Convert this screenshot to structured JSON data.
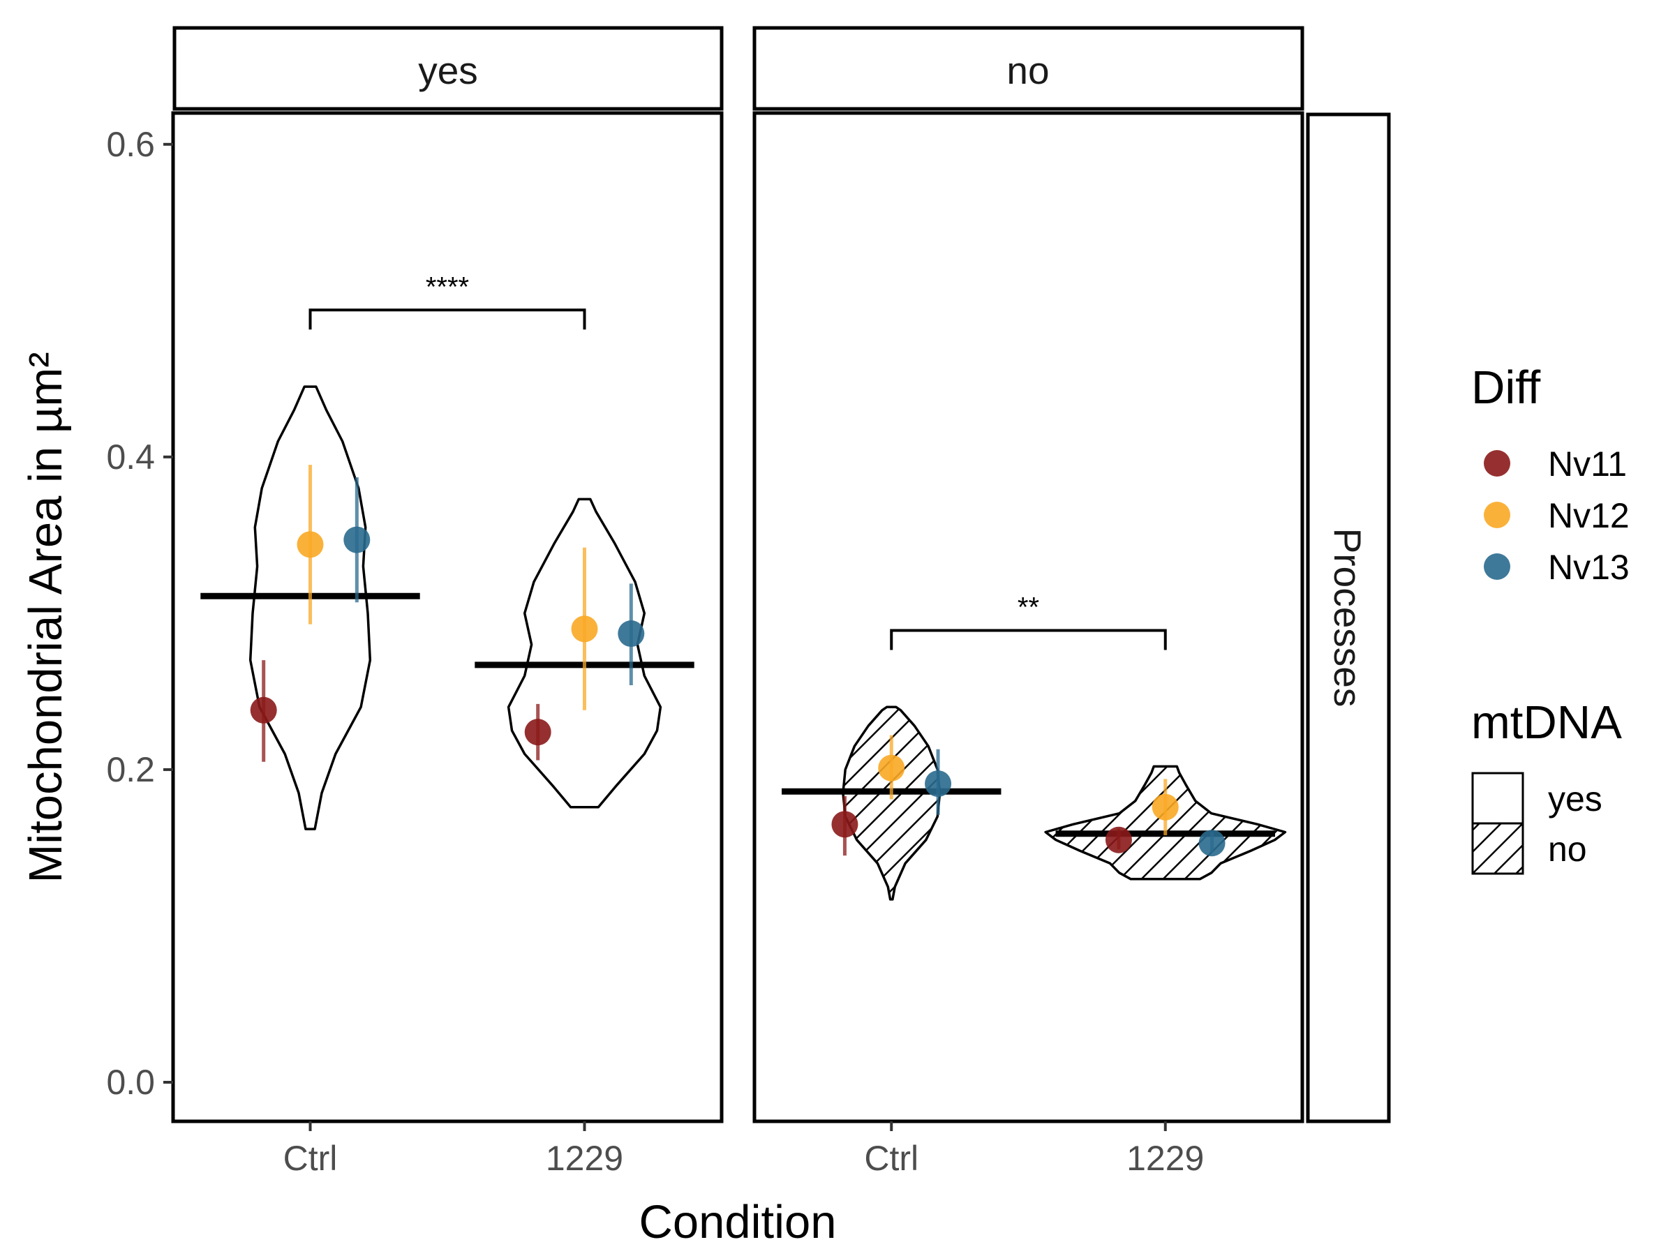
{
  "chart_data": {
    "type": "violin",
    "xlabel": "Condition",
    "ylabel": "Mitochondrial Area in µm²",
    "ylim": [
      -0.025,
      0.62
    ],
    "yticks": [
      "0.0",
      "0.2",
      "0.4",
      "0.6"
    ],
    "ytick_values": [
      0.0,
      0.2,
      0.4,
      0.6
    ],
    "categories": [
      "Ctrl",
      "1229"
    ],
    "facet_cols": [
      "yes",
      "no"
    ],
    "facet_row": "Processes",
    "legend": {
      "position": "right",
      "diff": {
        "title": "Diff",
        "items": [
          {
            "label": "Nv11",
            "color": "#8b1a1a"
          },
          {
            "label": "Nv12",
            "color": "#f9a825"
          },
          {
            "label": "Nv13",
            "color": "#2a6a8e"
          }
        ]
      },
      "mtdna": {
        "title": "mtDNA",
        "items": [
          {
            "label": "yes",
            "fill": "none"
          },
          {
            "label": "no",
            "fill": "hatch"
          }
        ]
      }
    },
    "panels": [
      {
        "facet": "yes",
        "hatched": false,
        "groups": [
          {
            "category": "Ctrl",
            "mean": 0.311,
            "violin": [
              [
                0.162,
                0.004
              ],
              [
                0.185,
                0.01
              ],
              [
                0.21,
                0.022
              ],
              [
                0.24,
                0.044
              ],
              [
                0.27,
                0.052
              ],
              [
                0.3,
                0.05
              ],
              [
                0.33,
                0.046
              ],
              [
                0.355,
                0.048
              ],
              [
                0.38,
                0.042
              ],
              [
                0.41,
                0.028
              ],
              [
                0.43,
                0.014
              ],
              [
                0.445,
                0.005
              ]
            ],
            "points": [
              {
                "diff": "Nv11",
                "y": 0.238,
                "low": 0.205,
                "high": 0.27
              },
              {
                "diff": "Nv12",
                "y": 0.344,
                "low": 0.293,
                "high": 0.395
              },
              {
                "diff": "Nv13",
                "y": 0.347,
                "low": 0.307,
                "high": 0.387
              }
            ]
          },
          {
            "category": "1229",
            "mean": 0.267,
            "violin": [
              [
                0.176,
                0.012
              ],
              [
                0.19,
                0.028
              ],
              [
                0.21,
                0.052
              ],
              [
                0.225,
                0.063
              ],
              [
                0.24,
                0.066
              ],
              [
                0.26,
                0.052
              ],
              [
                0.28,
                0.046
              ],
              [
                0.3,
                0.052
              ],
              [
                0.32,
                0.044
              ],
              [
                0.345,
                0.026
              ],
              [
                0.365,
                0.01
              ],
              [
                0.373,
                0.005
              ]
            ],
            "points": [
              {
                "diff": "Nv11",
                "y": 0.224,
                "low": 0.206,
                "high": 0.242
              },
              {
                "diff": "Nv12",
                "y": 0.29,
                "low": 0.238,
                "high": 0.342
              },
              {
                "diff": "Nv13",
                "y": 0.287,
                "low": 0.254,
                "high": 0.319
              }
            ]
          }
        ],
        "significance": {
          "label": "****",
          "y": 0.494
        }
      },
      {
        "facet": "no",
        "hatched": true,
        "groups": [
          {
            "category": "Ctrl",
            "mean": 0.186,
            "violin": [
              [
                0.117,
                0.001
              ],
              [
                0.125,
                0.003
              ],
              [
                0.14,
                0.012
              ],
              [
                0.155,
                0.03
              ],
              [
                0.17,
                0.04
              ],
              [
                0.185,
                0.042
              ],
              [
                0.2,
                0.04
              ],
              [
                0.215,
                0.032
              ],
              [
                0.228,
                0.02
              ],
              [
                0.238,
                0.008
              ],
              [
                0.24,
                0.004
              ]
            ],
            "points": [
              {
                "diff": "Nv11",
                "y": 0.165,
                "low": 0.145,
                "high": 0.183
              },
              {
                "diff": "Nv12",
                "y": 0.201,
                "low": 0.181,
                "high": 0.222
              },
              {
                "diff": "Nv13",
                "y": 0.191,
                "low": 0.171,
                "high": 0.213
              }
            ]
          },
          {
            "category": "1229",
            "mean": 0.159,
            "violin": [
              [
                0.13,
                0.03
              ],
              [
                0.134,
                0.04
              ],
              [
                0.14,
                0.048
              ],
              [
                0.148,
                0.074
              ],
              [
                0.155,
                0.095
              ],
              [
                0.16,
                0.104
              ],
              [
                0.165,
                0.08
              ],
              [
                0.172,
                0.04
              ],
              [
                0.18,
                0.026
              ],
              [
                0.19,
                0.018
              ],
              [
                0.198,
                0.012
              ],
              [
                0.202,
                0.01
              ]
            ],
            "points": [
              {
                "diff": "Nv11",
                "y": 0.155,
                "low": 0.149,
                "high": 0.162
              },
              {
                "diff": "Nv12",
                "y": 0.176,
                "low": 0.158,
                "high": 0.194
              },
              {
                "diff": "Nv13",
                "y": 0.153,
                "low": 0.147,
                "high": 0.16
              }
            ]
          }
        ],
        "significance": {
          "label": "**",
          "y": 0.289
        }
      }
    ]
  }
}
